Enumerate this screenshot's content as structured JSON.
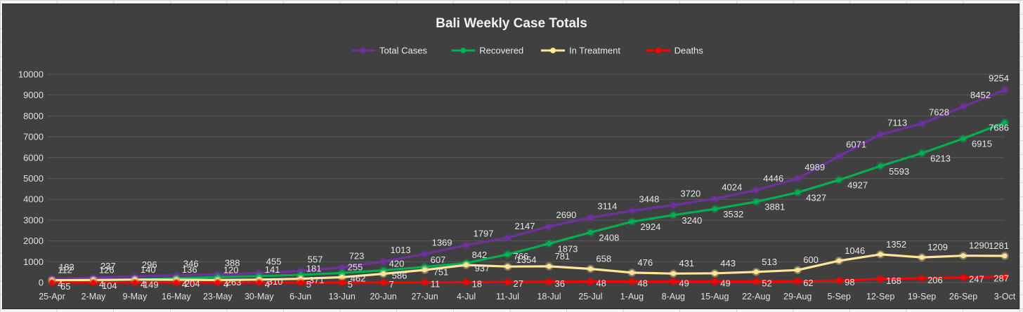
{
  "chart_data": {
    "type": "line",
    "title": "Bali Weekly Case Totals",
    "ylim": [
      0,
      10000
    ],
    "yticks": [
      0,
      1000,
      2000,
      3000,
      4000,
      5000,
      6000,
      7000,
      8000,
      9000,
      10000
    ],
    "grid": true,
    "legend_position": "top",
    "categories": [
      "25-Apr",
      "2-May",
      "9-May",
      "16-May",
      "23-May",
      "30-May",
      "6-Jun",
      "13-Jun",
      "20-Jun",
      "27-Jun",
      "4-Jul",
      "11-Jul",
      "18-Jul",
      "25-Jul",
      "1-Aug",
      "8-Aug",
      "15-Aug",
      "22-Aug",
      "29-Aug",
      "5-Sep",
      "12-Sep",
      "19-Sep",
      "26-Sep",
      "3-Oct"
    ],
    "series": [
      {
        "name": "Total Cases",
        "color": "#7030a0",
        "values": [
          183,
          237,
          296,
          346,
          388,
          455,
          557,
          723,
          1013,
          1369,
          1797,
          2147,
          2690,
          3114,
          3448,
          3720,
          4024,
          4446,
          4989,
          6071,
          7113,
          7628,
          8452,
          9254
        ]
      },
      {
        "name": "Recovered",
        "color": "#00b050",
        "values": [
          65,
          104,
          149,
          204,
          263,
          310,
          371,
          462,
          586,
          751,
          937,
          1354,
          1873,
          2408,
          2924,
          3240,
          3532,
          3881,
          4327,
          4927,
          5593,
          6213,
          6915,
          7686
        ]
      },
      {
        "name": "In Treatment",
        "color": "#ffe699",
        "values": [
          112,
          126,
          140,
          136,
          120,
          141,
          181,
          255,
          420,
          607,
          842,
          766,
          781,
          658,
          476,
          431,
          443,
          513,
          600,
          1046,
          1352,
          1209,
          1290,
          1281
        ]
      },
      {
        "name": "Deaths",
        "color": "#ff0000",
        "values": [
          4,
          4,
          4,
          4,
          4,
          4,
          5,
          5,
          7,
          11,
          18,
          27,
          36,
          48,
          48,
          49,
          49,
          52,
          62,
          98,
          168,
          206,
          247,
          287
        ]
      }
    ]
  }
}
